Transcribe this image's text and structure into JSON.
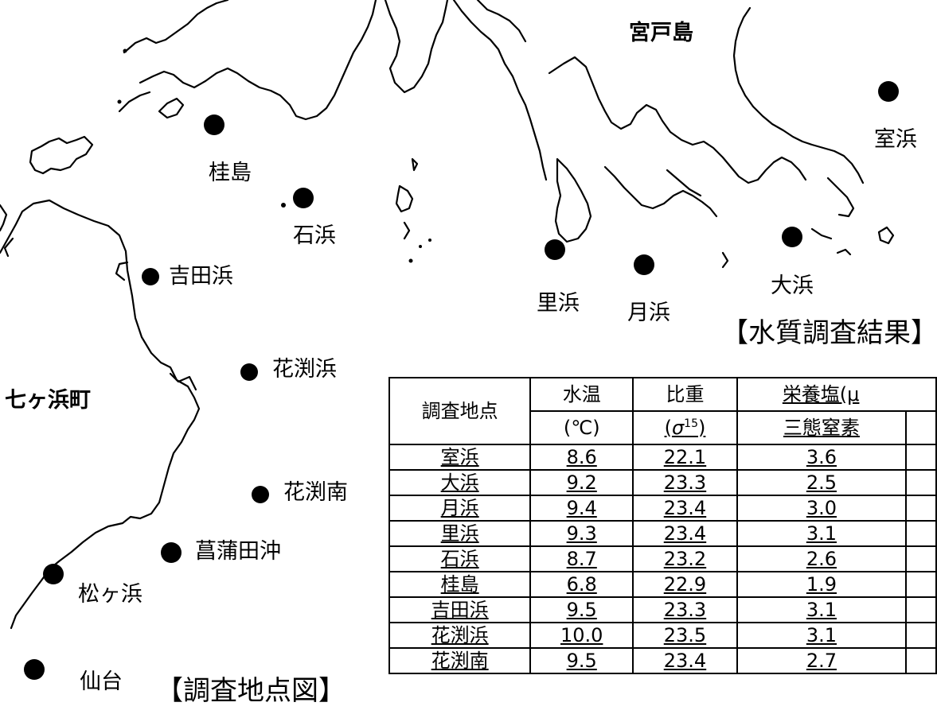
{
  "map": {
    "place_labels": {
      "miyatojima": "宮戸島",
      "murohama": "室浜",
      "katsurashima": "桂島",
      "ishihama": "石浜",
      "yoshidahama": "吉田浜",
      "satohama": "里浜",
      "tsukihama": "月浜",
      "ohama": "大浜",
      "hanabuchihama": "花渕浜",
      "hanabuchiminami": "花渕南",
      "ayametaoki": "菖蒲田沖",
      "matsugahama": "松ヶ浜",
      "sendai": "仙台",
      "shichigahama": "七ヶ浜町"
    },
    "map_title": "【調査地点図】"
  },
  "results": {
    "title": "【水質調査結果】",
    "headers": {
      "site": "調査地点",
      "temp": "水温",
      "temp_unit": "(℃)",
      "gravity": "比重",
      "gravity_unit_sigma": "σ",
      "gravity_unit_sup": "15",
      "nutrients": "栄養塩(μ",
      "nitrogen": "三態窒素"
    },
    "rows": [
      {
        "site": "室浜",
        "temp": "8.6",
        "gravity": "22.1",
        "nitrogen": "3.6"
      },
      {
        "site": "大浜",
        "temp": "9.2",
        "gravity": "23.3",
        "nitrogen": "2.5"
      },
      {
        "site": "月浜",
        "temp": "9.4",
        "gravity": "23.4",
        "nitrogen": "3.0"
      },
      {
        "site": "里浜",
        "temp": "9.3",
        "gravity": "23.4",
        "nitrogen": "3.1"
      },
      {
        "site": "石浜",
        "temp": "8.7",
        "gravity": "23.2",
        "nitrogen": "2.6"
      },
      {
        "site": "桂島",
        "temp": "6.8",
        "gravity": "22.9",
        "nitrogen": "1.9"
      },
      {
        "site": "吉田浜",
        "temp": "9.5",
        "gravity": "23.3",
        "nitrogen": "3.1"
      },
      {
        "site": "花渕浜",
        "temp": "10.0",
        "gravity": "23.5",
        "nitrogen": "3.1"
      },
      {
        "site": "花渕南",
        "temp": "9.5",
        "gravity": "23.4",
        "nitrogen": "2.7"
      }
    ]
  }
}
